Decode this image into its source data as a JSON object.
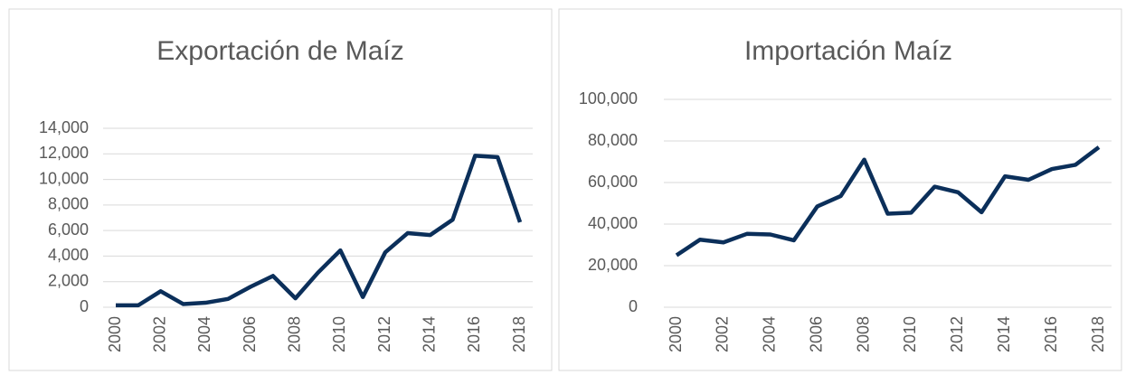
{
  "chart_data": [
    {
      "type": "line",
      "title": "Exportación de Maíz",
      "categories": [
        "2000",
        null,
        "2002",
        null,
        "2004",
        null,
        "2006",
        null,
        "2008",
        null,
        "2010",
        null,
        "2012",
        null,
        "2014",
        null,
        "2016",
        null,
        "2018"
      ],
      "series": [
        {
          "name": null,
          "color": "#0b2f5a",
          "values": [
            150,
            150,
            1250,
            250,
            350,
            650,
            1600,
            2450,
            700,
            2700,
            4450,
            800,
            4300,
            5800,
            5650,
            6850,
            11850,
            11750,
            6650
          ]
        }
      ],
      "ylim": [
        0,
        14000
      ],
      "yticks": [
        0,
        {
          "value": 2000,
          "label": "2,000"
        },
        {
          "value": 4000,
          "label": "4,000"
        },
        {
          "value": 6000,
          "label": "6,000"
        },
        {
          "value": 8000,
          "label": "8,000"
        },
        {
          "value": 10000,
          "label": "10,000"
        },
        {
          "value": 12000,
          "label": "12,000"
        },
        {
          "value": 14000,
          "label": "14,000"
        }
      ],
      "grid": true
    },
    {
      "type": "line",
      "title": "Importación  Maíz",
      "categories": [
        "2000",
        null,
        "2002",
        null,
        "2004",
        null,
        "2006",
        null,
        "2008",
        null,
        "2010",
        null,
        "2012",
        null,
        "2014",
        null,
        "2016",
        null,
        "2018"
      ],
      "series": [
        {
          "name": null,
          "color": "#0b2f5a",
          "values": [
            25000,
            32500,
            31200,
            35300,
            35000,
            32200,
            48500,
            53500,
            71000,
            45000,
            45500,
            58000,
            55300,
            45700,
            63000,
            61300,
            66500,
            68500,
            77000
          ]
        }
      ],
      "ylim": [
        0,
        100000
      ],
      "yticks": [
        0,
        {
          "value": 20000,
          "label": "20,000"
        },
        {
          "value": 40000,
          "label": "40,000"
        },
        {
          "value": 60000,
          "label": "60,000"
        },
        {
          "value": 80000,
          "label": "80,000"
        },
        {
          "value": 100000,
          "label": "100,000"
        }
      ],
      "grid": true
    }
  ]
}
